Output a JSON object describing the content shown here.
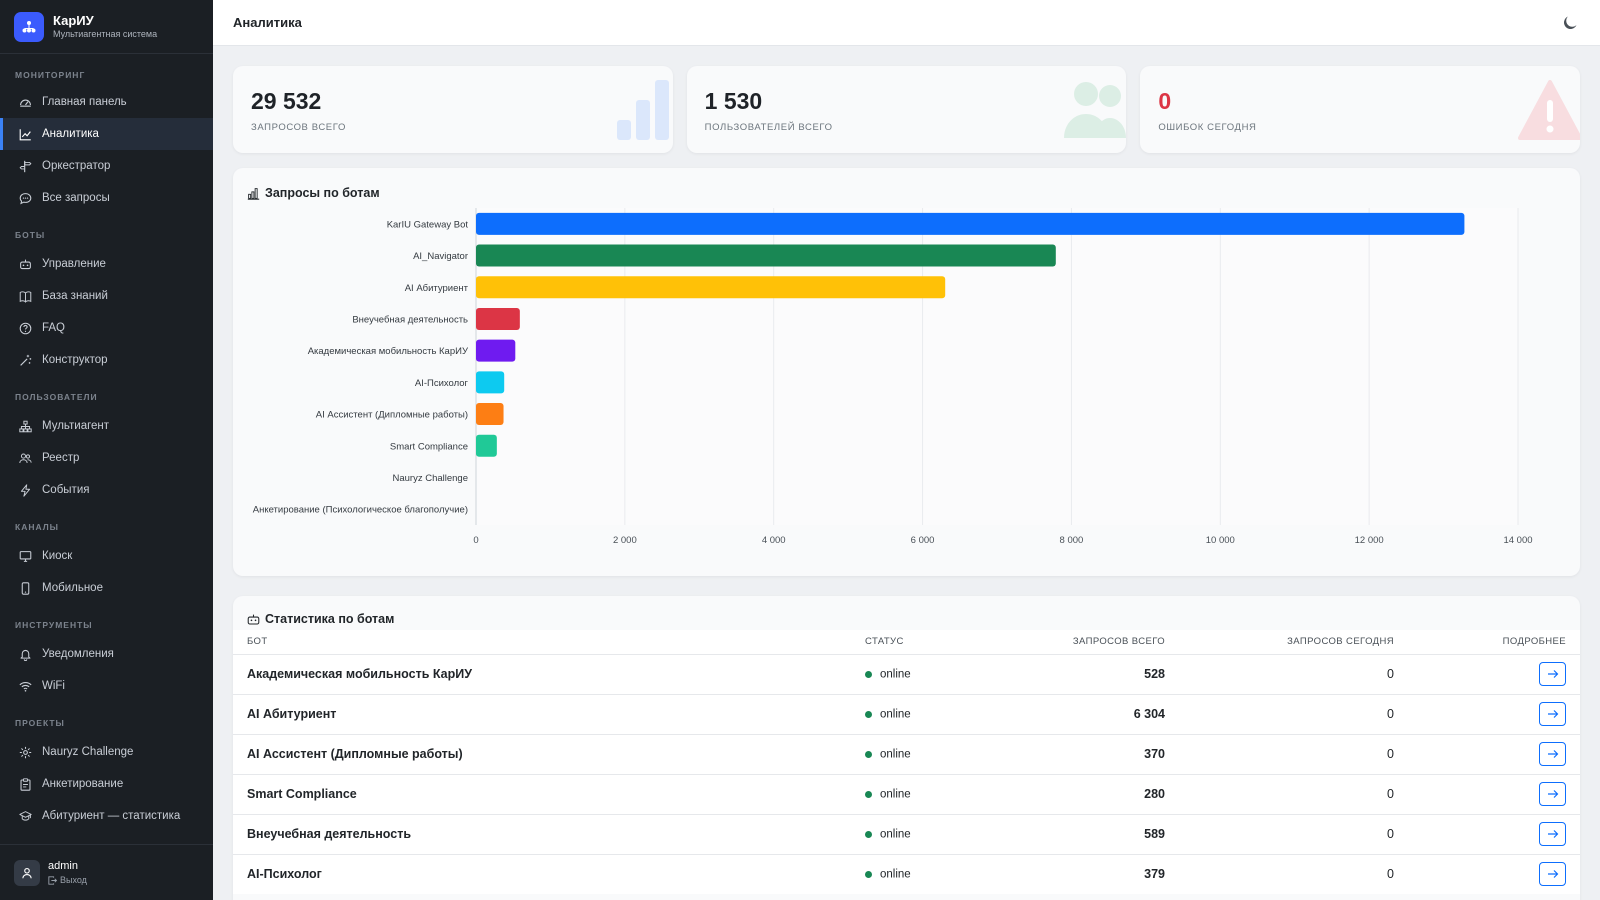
{
  "app": {
    "name": "КарИУ",
    "subtitle": "Мультиагентная система"
  },
  "sidebar": {
    "sections": [
      {
        "title": "МОНИТОРИНГ",
        "items": [
          {
            "label": "Главная панель",
            "icon": "dashboard-icon"
          },
          {
            "label": "Аналитика",
            "icon": "chart-line-icon",
            "active": true
          },
          {
            "label": "Оркестратор",
            "icon": "signpost-icon"
          },
          {
            "label": "Все запросы",
            "icon": "chat-icon"
          }
        ]
      },
      {
        "title": "БОТЫ",
        "items": [
          {
            "label": "Управление",
            "icon": "robot-icon"
          },
          {
            "label": "База знаний",
            "icon": "book-icon"
          },
          {
            "label": "FAQ",
            "icon": "question-icon"
          },
          {
            "label": "Конструктор",
            "icon": "magic-wand-icon"
          }
        ]
      },
      {
        "title": "ПОЛЬЗОВАТЕЛИ",
        "items": [
          {
            "label": "Мультиагент",
            "icon": "diagram-icon"
          },
          {
            "label": "Реестр",
            "icon": "people-icon"
          },
          {
            "label": "События",
            "icon": "lightning-icon"
          }
        ]
      },
      {
        "title": "КАНАЛЫ",
        "items": [
          {
            "label": "Киоск",
            "icon": "monitor-icon"
          },
          {
            "label": "Мобильное",
            "icon": "phone-icon"
          }
        ]
      },
      {
        "title": "ИНСТРУМЕНТЫ",
        "items": [
          {
            "label": "Уведомления",
            "icon": "bell-icon"
          },
          {
            "label": "WiFi",
            "icon": "wifi-icon"
          }
        ]
      },
      {
        "title": "ПРОЕКТЫ",
        "items": [
          {
            "label": "Nauryz Challenge",
            "icon": "gear-icon"
          },
          {
            "label": "Анкетирование",
            "icon": "clipboard-icon"
          },
          {
            "label": "Абитуриент — статистика",
            "icon": "graduation-cap-icon"
          }
        ]
      }
    ],
    "user": {
      "name": "admin",
      "logout_label": "Выход"
    }
  },
  "header": {
    "title": "Аналитика"
  },
  "stats": [
    {
      "value": "29 532",
      "label": "ЗАПРОСОВ ВСЕГО",
      "icon": "bar-chart-icon",
      "color": "#1f2328"
    },
    {
      "value": "1 530",
      "label": "ПОЛЬЗОВАТЕЛЕЙ ВСЕГО",
      "icon": "users-icon",
      "color": "#1f2328"
    },
    {
      "value": "0",
      "label": "ОШИБОК СЕГОДНЯ",
      "icon": "warning-icon",
      "color": "#dc3545"
    }
  ],
  "chart_title": "Запросы по ботам",
  "chart_data": {
    "type": "bar",
    "orientation": "horizontal",
    "categories": [
      "KarIU Gateway Bot",
      "AI_Navigator",
      "AI Абитуриент",
      "Внеучебная деятельность",
      "Академическая мобильность КарИУ",
      "AI-Психолог",
      "AI Ассистент (Дипломные работы)",
      "Smart Compliance",
      "Nauryz Challenge",
      "Анкетирование (Психологическое благополучие)"
    ],
    "values": [
      13280,
      7790,
      6304,
      589,
      528,
      379,
      370,
      280,
      0,
      0
    ],
    "colors": [
      "#0d6efd",
      "#198754",
      "#ffc107",
      "#dc3545",
      "#6f1bf0",
      "#0dcaf0",
      "#fd7e14",
      "#20c997",
      "#6c757d",
      "#adb5bd"
    ],
    "xlim": [
      0,
      14000
    ],
    "xticks": [
      0,
      2000,
      4000,
      6000,
      8000,
      10000,
      12000,
      14000
    ],
    "xtick_labels": [
      "0",
      "2 000",
      "4 000",
      "6 000",
      "8 000",
      "10 000",
      "12 000",
      "14 000"
    ],
    "grid": true
  },
  "table": {
    "title": "Статистика по ботам",
    "columns": {
      "bot": "БОТ",
      "status": "СТАТУС",
      "total": "ЗАПРОСОВ ВСЕГО",
      "today": "ЗАПРОСОВ СЕГОДНЯ",
      "more": "ПОДРОБНЕЕ"
    },
    "rows": [
      {
        "name": "Академическая мобильность КарИУ",
        "status": "online",
        "total": "528",
        "today": "0"
      },
      {
        "name": "AI Абитуриент",
        "status": "online",
        "total": "6 304",
        "today": "0"
      },
      {
        "name": "AI Ассистент (Дипломные работы)",
        "status": "online",
        "total": "370",
        "today": "0"
      },
      {
        "name": "Smart Compliance",
        "status": "online",
        "total": "280",
        "today": "0"
      },
      {
        "name": "Внеучебная деятельность",
        "status": "online",
        "total": "589",
        "today": "0"
      },
      {
        "name": "AI-Психолог",
        "status": "online",
        "total": "379",
        "today": "0"
      }
    ]
  }
}
